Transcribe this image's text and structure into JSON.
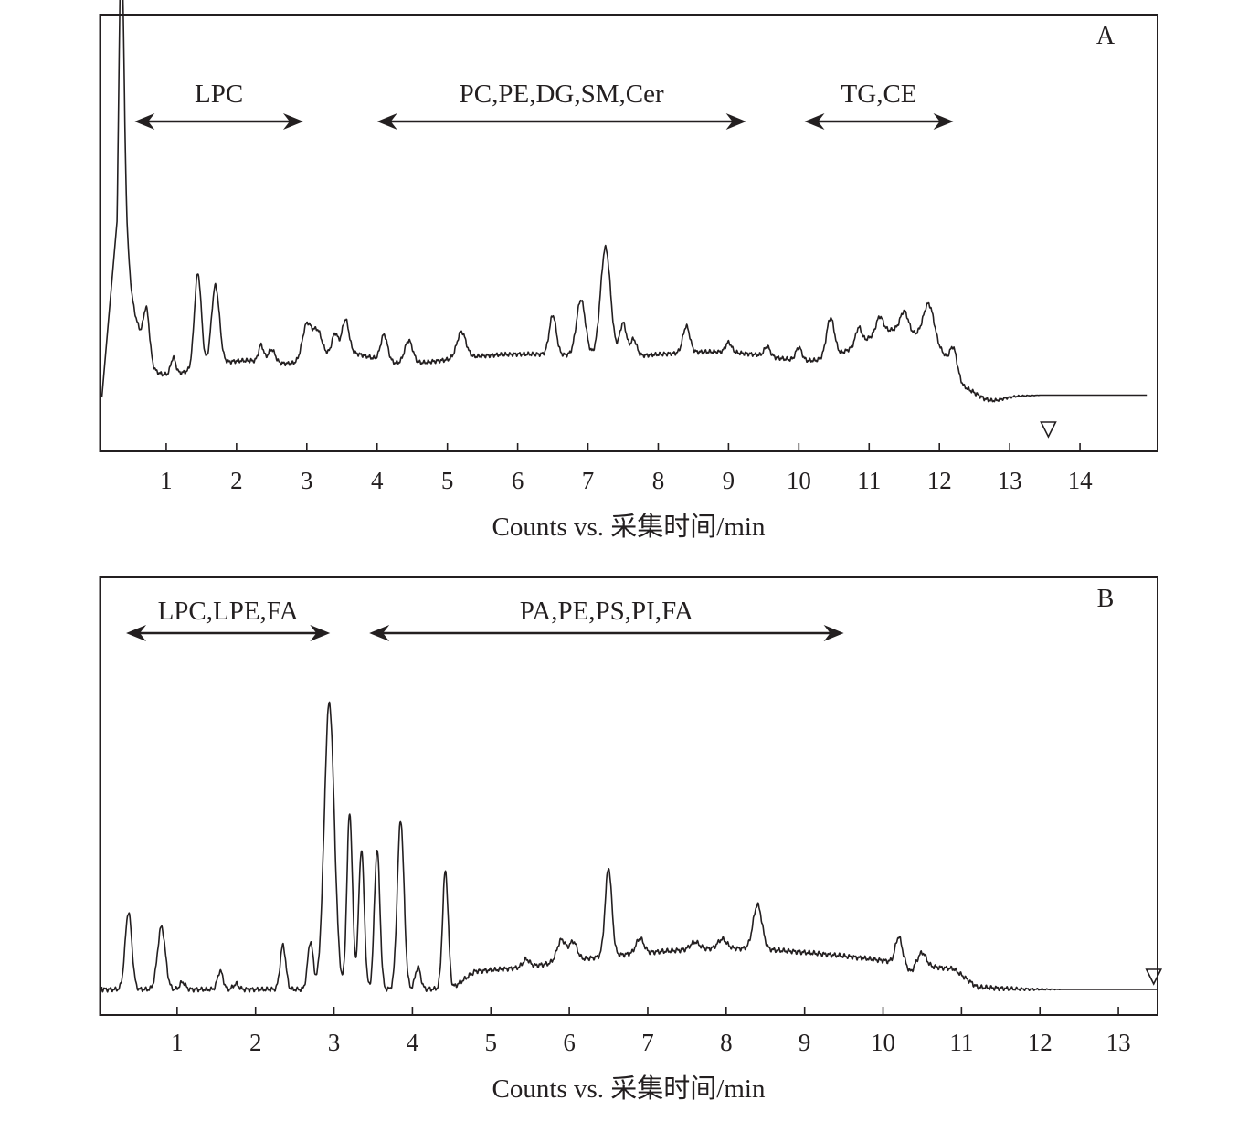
{
  "chart_data": [
    {
      "type": "line",
      "panel_label": "A",
      "xlabel": "Counts vs.  采集时间/min",
      "xlim": [
        0,
        15
      ],
      "ylim": [
        0,
        1
      ],
      "x_ticks": [
        1,
        2,
        3,
        4,
        5,
        6,
        7,
        8,
        9,
        10,
        11,
        12,
        13,
        14
      ],
      "x_tick_labels": [
        "1",
        "2",
        "3",
        "4",
        "5",
        "6",
        "7",
        "8",
        "9",
        "10",
        "11",
        "12",
        "13",
        "14"
      ],
      "grid": false,
      "marker_x": 13.55,
      "baseline": 0.15,
      "end_level": 0.157,
      "ranges": [
        {
          "label": "LPC",
          "start": 0.55,
          "end": 2.95
        },
        {
          "label": "PC,PE,DG,SM,Cer",
          "start": 4.0,
          "end": 9.25
        },
        {
          "label": "TG,CE",
          "start": 10.08,
          "end": 12.2
        }
      ],
      "series": [
        {
          "peaks": [
            {
              "x": 0.36,
              "h": 0.82,
              "w": 0.05
            },
            {
              "x": 0.38,
              "h": 0.35,
              "w": 0.1
            },
            {
              "x": 0.45,
              "h": 0.22,
              "w": 0.25
            },
            {
              "x": 0.72,
              "h": 0.14,
              "w": 0.06
            },
            {
              "x": 1.1,
              "h": 0.05,
              "w": 0.05
            },
            {
              "x": 1.45,
              "h": 0.29,
              "w": 0.07
            },
            {
              "x": 1.7,
              "h": 0.24,
              "w": 0.08
            },
            {
              "x": 2.35,
              "h": 0.05,
              "w": 0.05
            },
            {
              "x": 2.5,
              "h": 0.04,
              "w": 0.07
            },
            {
              "x": 3.0,
              "h": 0.11,
              "w": 0.09
            },
            {
              "x": 3.15,
              "h": 0.08,
              "w": 0.09
            },
            {
              "x": 3.4,
              "h": 0.06,
              "w": 0.06
            },
            {
              "x": 3.55,
              "h": 0.1,
              "w": 0.07
            },
            {
              "x": 4.1,
              "h": 0.08,
              "w": 0.07
            },
            {
              "x": 4.45,
              "h": 0.07,
              "w": 0.08
            },
            {
              "x": 5.2,
              "h": 0.08,
              "w": 0.09
            },
            {
              "x": 6.5,
              "h": 0.12,
              "w": 0.07
            },
            {
              "x": 6.9,
              "h": 0.17,
              "w": 0.09
            },
            {
              "x": 7.25,
              "h": 0.33,
              "w": 0.1
            },
            {
              "x": 7.5,
              "h": 0.1,
              "w": 0.07
            },
            {
              "x": 7.65,
              "h": 0.05,
              "w": 0.06
            },
            {
              "x": 8.4,
              "h": 0.08,
              "w": 0.07
            },
            {
              "x": 9.0,
              "h": 0.03,
              "w": 0.06
            },
            {
              "x": 9.55,
              "h": 0.03,
              "w": 0.06
            },
            {
              "x": 10.0,
              "h": 0.04,
              "w": 0.06
            },
            {
              "x": 10.45,
              "h": 0.12,
              "w": 0.08
            },
            {
              "x": 10.85,
              "h": 0.05,
              "w": 0.06
            },
            {
              "x": 11.15,
              "h": 0.05,
              "w": 0.07
            },
            {
              "x": 11.5,
              "h": 0.06,
              "w": 0.08
            },
            {
              "x": 11.85,
              "h": 0.12,
              "w": 0.11
            },
            {
              "x": 12.2,
              "h": 0.07,
              "w": 0.07
            }
          ],
          "humps": [
            {
              "x": 2.1,
              "h": 0.05,
              "w": 0.8
            },
            {
              "x": 3.5,
              "h": 0.06,
              "w": 0.6
            },
            {
              "x": 6.0,
              "h": 0.07,
              "w": 2.0
            },
            {
              "x": 9.0,
              "h": 0.07,
              "w": 1.5
            },
            {
              "x": 11.4,
              "h": 0.14,
              "w": 0.8
            }
          ],
          "floor": {
            "start": 0.28,
            "end": 12.35,
            "level": 0.06
          },
          "dip": {
            "x": 12.75,
            "h": -0.02,
            "w": 0.25
          }
        }
      ]
    },
    {
      "type": "line",
      "panel_label": "B",
      "xlabel": "Counts vs.  采集时间/min",
      "xlim": [
        0,
        13.5
      ],
      "ylim": [
        0,
        1
      ],
      "x_ticks": [
        1,
        2,
        3,
        4,
        5,
        6,
        7,
        8,
        9,
        10,
        11,
        12,
        13
      ],
      "x_tick_labels": [
        "1",
        "2",
        "3",
        "4",
        "5",
        "6",
        "7",
        "8",
        "9",
        "10",
        "11",
        "12",
        "13"
      ],
      "grid": false,
      "marker_x": 13.45,
      "baseline": 0.075,
      "end_level": 0.075,
      "ranges": [
        {
          "label": "LPC,LPE,FA",
          "start": 0.35,
          "end": 2.95
        },
        {
          "label": "PA,PE,PS,PI,FA",
          "start": 3.45,
          "end": 9.5
        }
      ],
      "series": [
        {
          "peaks": [
            {
              "x": 0.38,
              "h": 0.21,
              "w": 0.06
            },
            {
              "x": 0.8,
              "h": 0.17,
              "w": 0.07
            },
            {
              "x": 1.07,
              "h": 0.02,
              "w": 0.05
            },
            {
              "x": 1.55,
              "h": 0.05,
              "w": 0.05
            },
            {
              "x": 1.75,
              "h": 0.015,
              "w": 0.05
            },
            {
              "x": 2.35,
              "h": 0.12,
              "w": 0.05
            },
            {
              "x": 2.7,
              "h": 0.13,
              "w": 0.05
            },
            {
              "x": 2.94,
              "h": 0.78,
              "w": 0.09
            },
            {
              "x": 3.2,
              "h": 0.48,
              "w": 0.05
            },
            {
              "x": 3.35,
              "h": 0.38,
              "w": 0.05
            },
            {
              "x": 3.55,
              "h": 0.38,
              "w": 0.05
            },
            {
              "x": 3.85,
              "h": 0.46,
              "w": 0.06
            },
            {
              "x": 4.07,
              "h": 0.06,
              "w": 0.05
            },
            {
              "x": 4.42,
              "h": 0.32,
              "w": 0.05
            },
            {
              "x": 5.45,
              "h": 0.02,
              "w": 0.06
            },
            {
              "x": 5.9,
              "h": 0.06,
              "w": 0.08
            },
            {
              "x": 6.05,
              "h": 0.05,
              "w": 0.07
            },
            {
              "x": 6.5,
              "h": 0.24,
              "w": 0.06
            },
            {
              "x": 6.9,
              "h": 0.04,
              "w": 0.07
            },
            {
              "x": 7.6,
              "h": 0.02,
              "w": 0.08
            },
            {
              "x": 7.95,
              "h": 0.025,
              "w": 0.08
            },
            {
              "x": 8.4,
              "h": 0.12,
              "w": 0.08
            },
            {
              "x": 10.2,
              "h": 0.07,
              "w": 0.06
            },
            {
              "x": 10.5,
              "h": 0.035,
              "w": 0.07
            }
          ],
          "humps": [
            {
              "x": 6.5,
              "h": 0.035,
              "w": 1.2
            },
            {
              "x": 8.0,
              "h": 0.05,
              "w": 1.2
            },
            {
              "x": 9.5,
              "h": 0.035,
              "w": 1.3
            }
          ],
          "floor": {
            "start": 4.5,
            "end": 11.2,
            "level": 0.045
          },
          "dip": {
            "x": 10.35,
            "h": -0.02,
            "w": 0.05
          }
        }
      ]
    }
  ]
}
